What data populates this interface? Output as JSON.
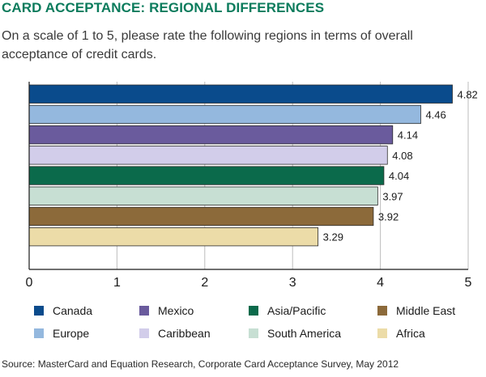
{
  "title": "CARD ACCEPTANCE: REGIONAL DIFFERENCES",
  "subtitle": "On a scale of 1 to 5, please rate the following regions in terms of overall acceptance of credit cards.",
  "source": "Source: MasterCard and Equation Research, Corporate Card Acceptance Survey, May 2012",
  "colors": {
    "title": "#0b7b5c"
  },
  "chart_data": {
    "type": "bar",
    "orientation": "horizontal",
    "categories": [
      "Canada",
      "Europe",
      "Mexico",
      "Caribbean",
      "Asia/Pacific",
      "South America",
      "Middle East",
      "Africa"
    ],
    "values": [
      4.82,
      4.46,
      4.14,
      4.08,
      4.04,
      3.97,
      3.92,
      3.29
    ],
    "value_labels": [
      "4.82",
      "4.46",
      "4.14",
      "4.08",
      "4.04",
      "3.97",
      "3.92",
      "3.29"
    ],
    "colors": [
      "#0a4b8c",
      "#94b8de",
      "#6a5b9d",
      "#d2cdea",
      "#0b6a4b",
      "#c7dfd3",
      "#8c6a3a",
      "#ecdca8"
    ],
    "xlim": [
      0,
      5
    ],
    "x_ticks": [
      "0",
      "1",
      "2",
      "3",
      "4",
      "5"
    ],
    "grid": true,
    "legend_placement": "bottom",
    "title": "CARD ACCEPTANCE: REGIONAL DIFFERENCES",
    "xlabel": "",
    "ylabel": ""
  }
}
